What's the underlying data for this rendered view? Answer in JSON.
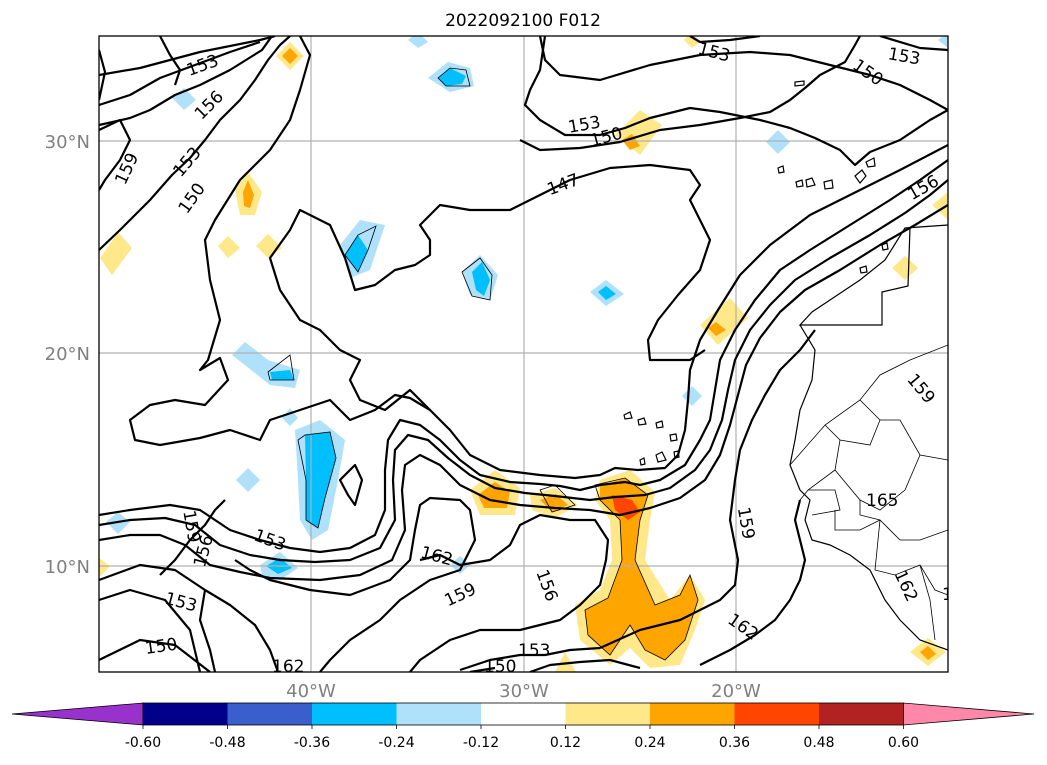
{
  "chart_data": {
    "type": "map-contour",
    "title": "2022092100 F012",
    "lat_ticks": [
      "30°N",
      "20°N",
      "10°N"
    ],
    "lon_ticks": [
      "40°W",
      "30°W",
      "20°W"
    ],
    "lon_range": [
      -50,
      -10
    ],
    "lat_range": [
      5,
      35
    ],
    "colorbar": {
      "bounds": [
        "-0.60",
        "-0.48",
        "-0.36",
        "-0.24",
        "-0.12",
        "0.12",
        "0.24",
        "0.36",
        "0.48",
        "0.60"
      ],
      "colors": [
        "#9932cc",
        "#00008b",
        "#3a5fcd",
        "#00bfff",
        "#afe1fa",
        "#ffffff",
        "#ffe88a",
        "#ffa500",
        "#ff4500",
        "#b22222",
        "#ff88aa"
      ],
      "extend": "both"
    },
    "contour_labels": [
      "153",
      "153",
      "153",
      "153",
      "156",
      "153",
      "159",
      "150",
      "150",
      "150",
      "147",
      "156",
      "159",
      "165",
      "159",
      "156",
      "153",
      "162",
      "159",
      "156",
      "153",
      "150",
      "150",
      "153",
      "162",
      "162",
      "159",
      "162",
      "162"
    ]
  }
}
